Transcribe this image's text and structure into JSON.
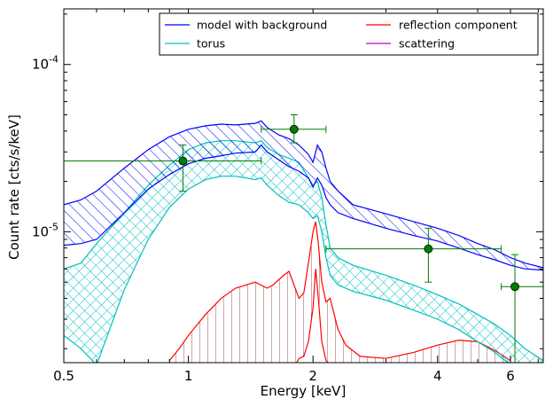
{
  "chart_data": {
    "type": "line",
    "xlabel": "Energy [keV]",
    "ylabel": "Count rate [cts/s/keV]",
    "x_scale": "log",
    "y_scale": "log",
    "xlim": [
      0.5,
      7.2
    ],
    "ylim": [
      1.65e-06,
      0.000215
    ],
    "x_ticks": [
      {
        "value": 0.5,
        "label": "0.5"
      },
      {
        "value": 1,
        "label": "1"
      },
      {
        "value": 2,
        "label": "2"
      },
      {
        "value": 4,
        "label": "4"
      },
      {
        "value": 6,
        "label": "6"
      }
    ],
    "y_ticks": [
      {
        "value": 1e-05,
        "base": "10",
        "exp": "-5"
      },
      {
        "value": 0.0001,
        "base": "10",
        "exp": "-4"
      }
    ],
    "grid": false,
    "legend": {
      "placement": "top-right",
      "columns": 2,
      "entries": [
        {
          "label": "model with background",
          "color": "#0000ff"
        },
        {
          "label": "reflection component",
          "color": "#ff0000"
        },
        {
          "label": "torus",
          "color": "#00bfbf"
        },
        {
          "label": "scattering",
          "color": "#bf00bf"
        }
      ]
    },
    "series": [
      {
        "name": "model with background",
        "color": "#0000ff",
        "style": "diagonal-hatch band",
        "x": [
          0.5,
          0.55,
          0.6,
          0.7,
          0.8,
          0.9,
          1.0,
          1.1,
          1.2,
          1.3,
          1.45,
          1.5,
          1.55,
          1.65,
          1.75,
          1.85,
          1.95,
          2.0,
          2.05,
          2.1,
          2.15,
          2.2,
          2.3,
          2.5,
          3.0,
          3.5,
          4.0,
          4.5,
          5.0,
          5.5,
          6.0,
          6.5,
          7.2
        ],
        "upper": [
          1.45e-05,
          1.55e-05,
          1.75e-05,
          2.4e-05,
          3.1e-05,
          3.7e-05,
          4.1e-05,
          4.3e-05,
          4.4e-05,
          4.35e-05,
          4.45e-05,
          4.6e-05,
          4.2e-05,
          3.8e-05,
          3.6e-05,
          3.3e-05,
          2.9e-05,
          2.6e-05,
          3.3e-05,
          3e-05,
          2.4e-05,
          2e-05,
          1.75e-05,
          1.45e-05,
          1.28e-05,
          1.15e-05,
          1.05e-05,
          9.5e-06,
          8.5e-06,
          7.8e-06,
          7e-06,
          6.5e-06,
          6.1e-06
        ],
        "lower": [
          8.3e-06,
          8.5e-06,
          9e-06,
          1.3e-05,
          1.8e-05,
          2.2e-05,
          2.55e-05,
          2.75e-05,
          2.85e-05,
          2.95e-05,
          3e-05,
          3.3e-05,
          3e-05,
          2.7e-05,
          2.45e-05,
          2.3e-05,
          2.1e-05,
          1.85e-05,
          2.1e-05,
          1.9e-05,
          1.6e-05,
          1.45e-05,
          1.3e-05,
          1.2e-05,
          1.05e-05,
          9.5e-06,
          8.8e-06,
          8e-06,
          7.3e-06,
          6.8e-06,
          6.3e-06,
          6e-06,
          5.9e-06
        ]
      },
      {
        "name": "torus",
        "color": "#00bfbf",
        "style": "cross-hatch band",
        "x": [
          0.5,
          0.55,
          0.6,
          0.7,
          0.8,
          0.9,
          1.0,
          1.1,
          1.2,
          1.3,
          1.45,
          1.5,
          1.55,
          1.65,
          1.75,
          1.85,
          1.95,
          2.0,
          2.05,
          2.1,
          2.15,
          2.2,
          2.3,
          2.5,
          3.0,
          3.5,
          4.0,
          4.5,
          5.0,
          5.5,
          6.0,
          6.5,
          7.2
        ],
        "upper": [
          6e-06,
          6.5e-06,
          8.5e-06,
          1.3e-05,
          1.9e-05,
          2.5e-05,
          3.1e-05,
          3.4e-05,
          3.5e-05,
          3.5e-05,
          3.4e-05,
          3.5e-05,
          3.2e-05,
          2.9e-05,
          2.75e-05,
          2.6e-05,
          2.1e-05,
          1.9e-05,
          2e-05,
          1.6e-05,
          1.1e-05,
          8e-06,
          7e-06,
          6.3e-06,
          5.5e-06,
          4.8e-06,
          4.2e-06,
          3.7e-06,
          3.2e-06,
          2.8e-06,
          2.4e-06,
          2e-06,
          1.7e-06
        ],
        "lower": [
          2.4e-06,
          2e-06,
          1.6e-06,
          4.5e-06,
          9e-06,
          1.4e-05,
          1.8e-05,
          2.05e-05,
          2.15e-05,
          2.15e-05,
          2.05e-05,
          2.1e-05,
          1.9e-05,
          1.65e-05,
          1.5e-05,
          1.45e-05,
          1.3e-05,
          1.2e-05,
          1.25e-05,
          1e-05,
          7e-06,
          5.5e-06,
          4.8e-06,
          4.4e-06,
          3.9e-06,
          3.4e-06,
          3e-06,
          2.6e-06,
          2.2e-06,
          1.9e-06,
          1.6e-06,
          1.4e-06,
          1.2e-06
        ]
      },
      {
        "name": "reflection component",
        "color": "#ff0000",
        "style": "band with vertical hatch",
        "x": [
          0.9,
          0.95,
          1.0,
          1.1,
          1.2,
          1.3,
          1.45,
          1.55,
          1.6,
          1.7,
          1.75,
          1.8,
          1.85,
          1.9,
          1.95,
          2.0,
          2.03,
          2.06,
          2.1,
          2.15,
          2.2,
          2.25,
          2.3,
          2.4,
          2.6,
          3.0,
          3.5,
          4.0,
          4.5,
          5.0,
          5.5,
          6.0
        ],
        "upper": [
          1.7e-06,
          2e-06,
          2.4e-06,
          3.2e-06,
          4e-06,
          4.6e-06,
          5e-06,
          4.6e-06,
          4.8e-06,
          5.5e-06,
          5.8e-06,
          4.8e-06,
          4e-06,
          4.3e-06,
          6.5e-06,
          1e-05,
          1.15e-05,
          8.5e-06,
          5e-06,
          3.8e-06,
          4e-06,
          3.2e-06,
          2.6e-06,
          2.1e-06,
          1.8e-06,
          1.75e-06,
          1.9e-06,
          2.1e-06,
          2.25e-06,
          2.2e-06,
          1.95e-06,
          1.7e-06
        ],
        "lower": [
          1e-06,
          1e-06,
          1e-06,
          1e-06,
          1e-06,
          1e-06,
          1e-06,
          1e-06,
          1e-06,
          1.1e-06,
          1.3e-06,
          1.55e-06,
          1.75e-06,
          1.8e-06,
          2.2e-06,
          3.5e-06,
          6e-06,
          4e-06,
          2.2e-06,
          1.7e-06,
          1.6e-06,
          1.4e-06,
          1.2e-06,
          1e-06,
          1e-06,
          1e-06,
          1e-06,
          1e-06,
          1e-06,
          1e-06,
          1e-06,
          1e-06
        ]
      }
    ],
    "data_points": {
      "color": "#007f00",
      "points": [
        {
          "x": 0.97,
          "y": 2.65e-05,
          "xerr": [
            0.5,
            1.5
          ],
          "yerr": [
            1.75e-05,
            3.3e-05
          ]
        },
        {
          "x": 1.8,
          "y": 4.1e-05,
          "xerr": [
            1.5,
            2.15
          ],
          "yerr": [
            3.4e-05,
            5e-05
          ]
        },
        {
          "x": 3.8,
          "y": 7.9e-06,
          "xerr": [
            2.15,
            5.7
          ],
          "yerr": [
            5e-06,
            1.05e-05
          ]
        },
        {
          "x": 6.15,
          "y": 4.7e-06,
          "xerr": [
            5.7,
            7.2
          ],
          "yerr": [
            1.65e-06,
            7.3e-06
          ]
        }
      ]
    }
  }
}
